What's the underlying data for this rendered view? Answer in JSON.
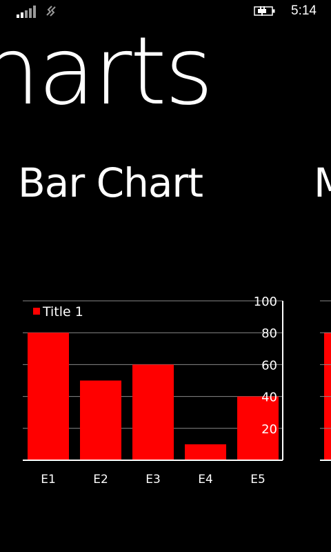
{
  "status_bar": {
    "time": "5:14",
    "signal_icon": "signal-bars-icon",
    "wifi_icon": "data-connection-icon",
    "battery_icon": "battery-charging-icon",
    "signal_level": 2,
    "signal_max": 5
  },
  "panorama": {
    "title": "harts"
  },
  "section": {
    "header": "Bar Chart",
    "next_header_peek": "M"
  },
  "colors": {
    "bar": "#ff0000",
    "gridline": "#8a8a8a",
    "axis": "#ffffff",
    "background": "#000000"
  },
  "chart_data": {
    "type": "bar",
    "title": "",
    "xlabel": "",
    "ylabel": "",
    "categories": [
      "E1",
      "E2",
      "E3",
      "E4",
      "E5"
    ],
    "series": [
      {
        "name": "Title 1",
        "values": [
          80,
          50,
          60,
          10,
          40
        ]
      }
    ],
    "ylim": [
      0,
      100
    ],
    "yticks": [
      20,
      40,
      60,
      80,
      100
    ],
    "y_axis_side": "right",
    "grid": true,
    "legend_position": "top-left"
  }
}
